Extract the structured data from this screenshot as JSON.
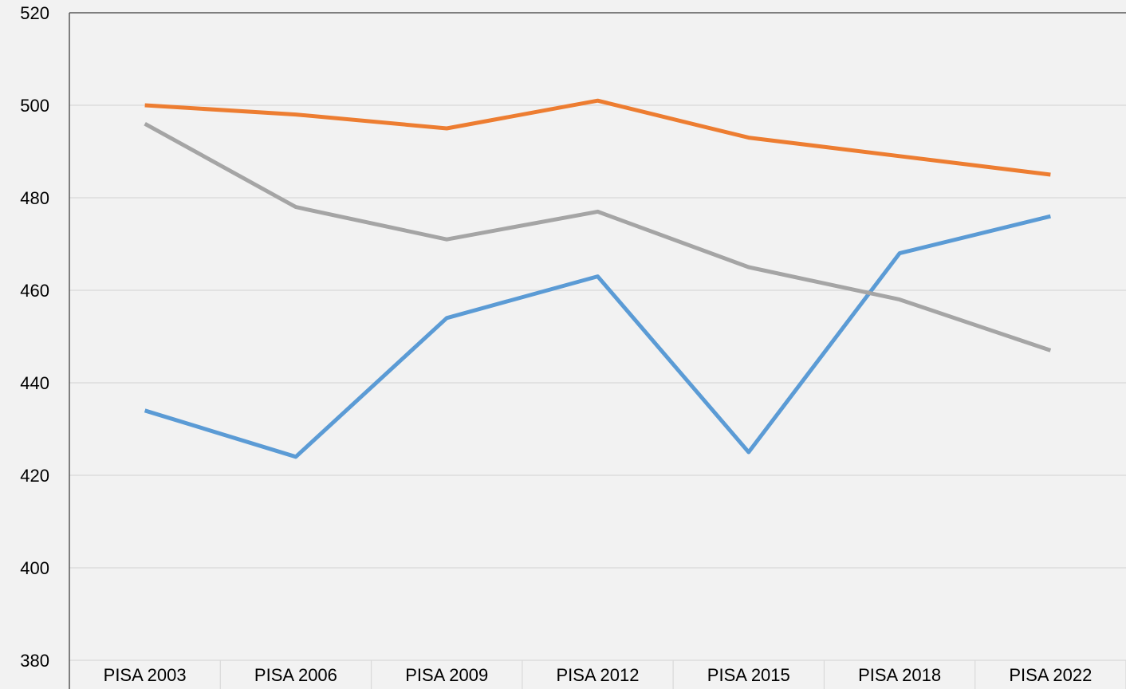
{
  "chart_data": {
    "type": "line",
    "categories": [
      "PISA 2003",
      "PISA 2006",
      "PISA 2009",
      "PISA 2012",
      "PISA 2015",
      "PISA 2018",
      "PISA 2022"
    ],
    "series": [
      {
        "color": "#5b9bd5",
        "values": [
          434,
          424,
          454,
          463,
          425,
          468,
          476
        ]
      },
      {
        "color": "#ed7d31",
        "values": [
          500,
          498,
          495,
          501,
          493,
          489,
          485
        ]
      },
      {
        "color": "#a5a5a5",
        "values": [
          496,
          478,
          471,
          477,
          465,
          458,
          447
        ]
      }
    ],
    "ylim": [
      380,
      520
    ],
    "yticks": [
      380,
      400,
      420,
      440,
      460,
      480,
      500,
      520
    ],
    "grid": true
  }
}
